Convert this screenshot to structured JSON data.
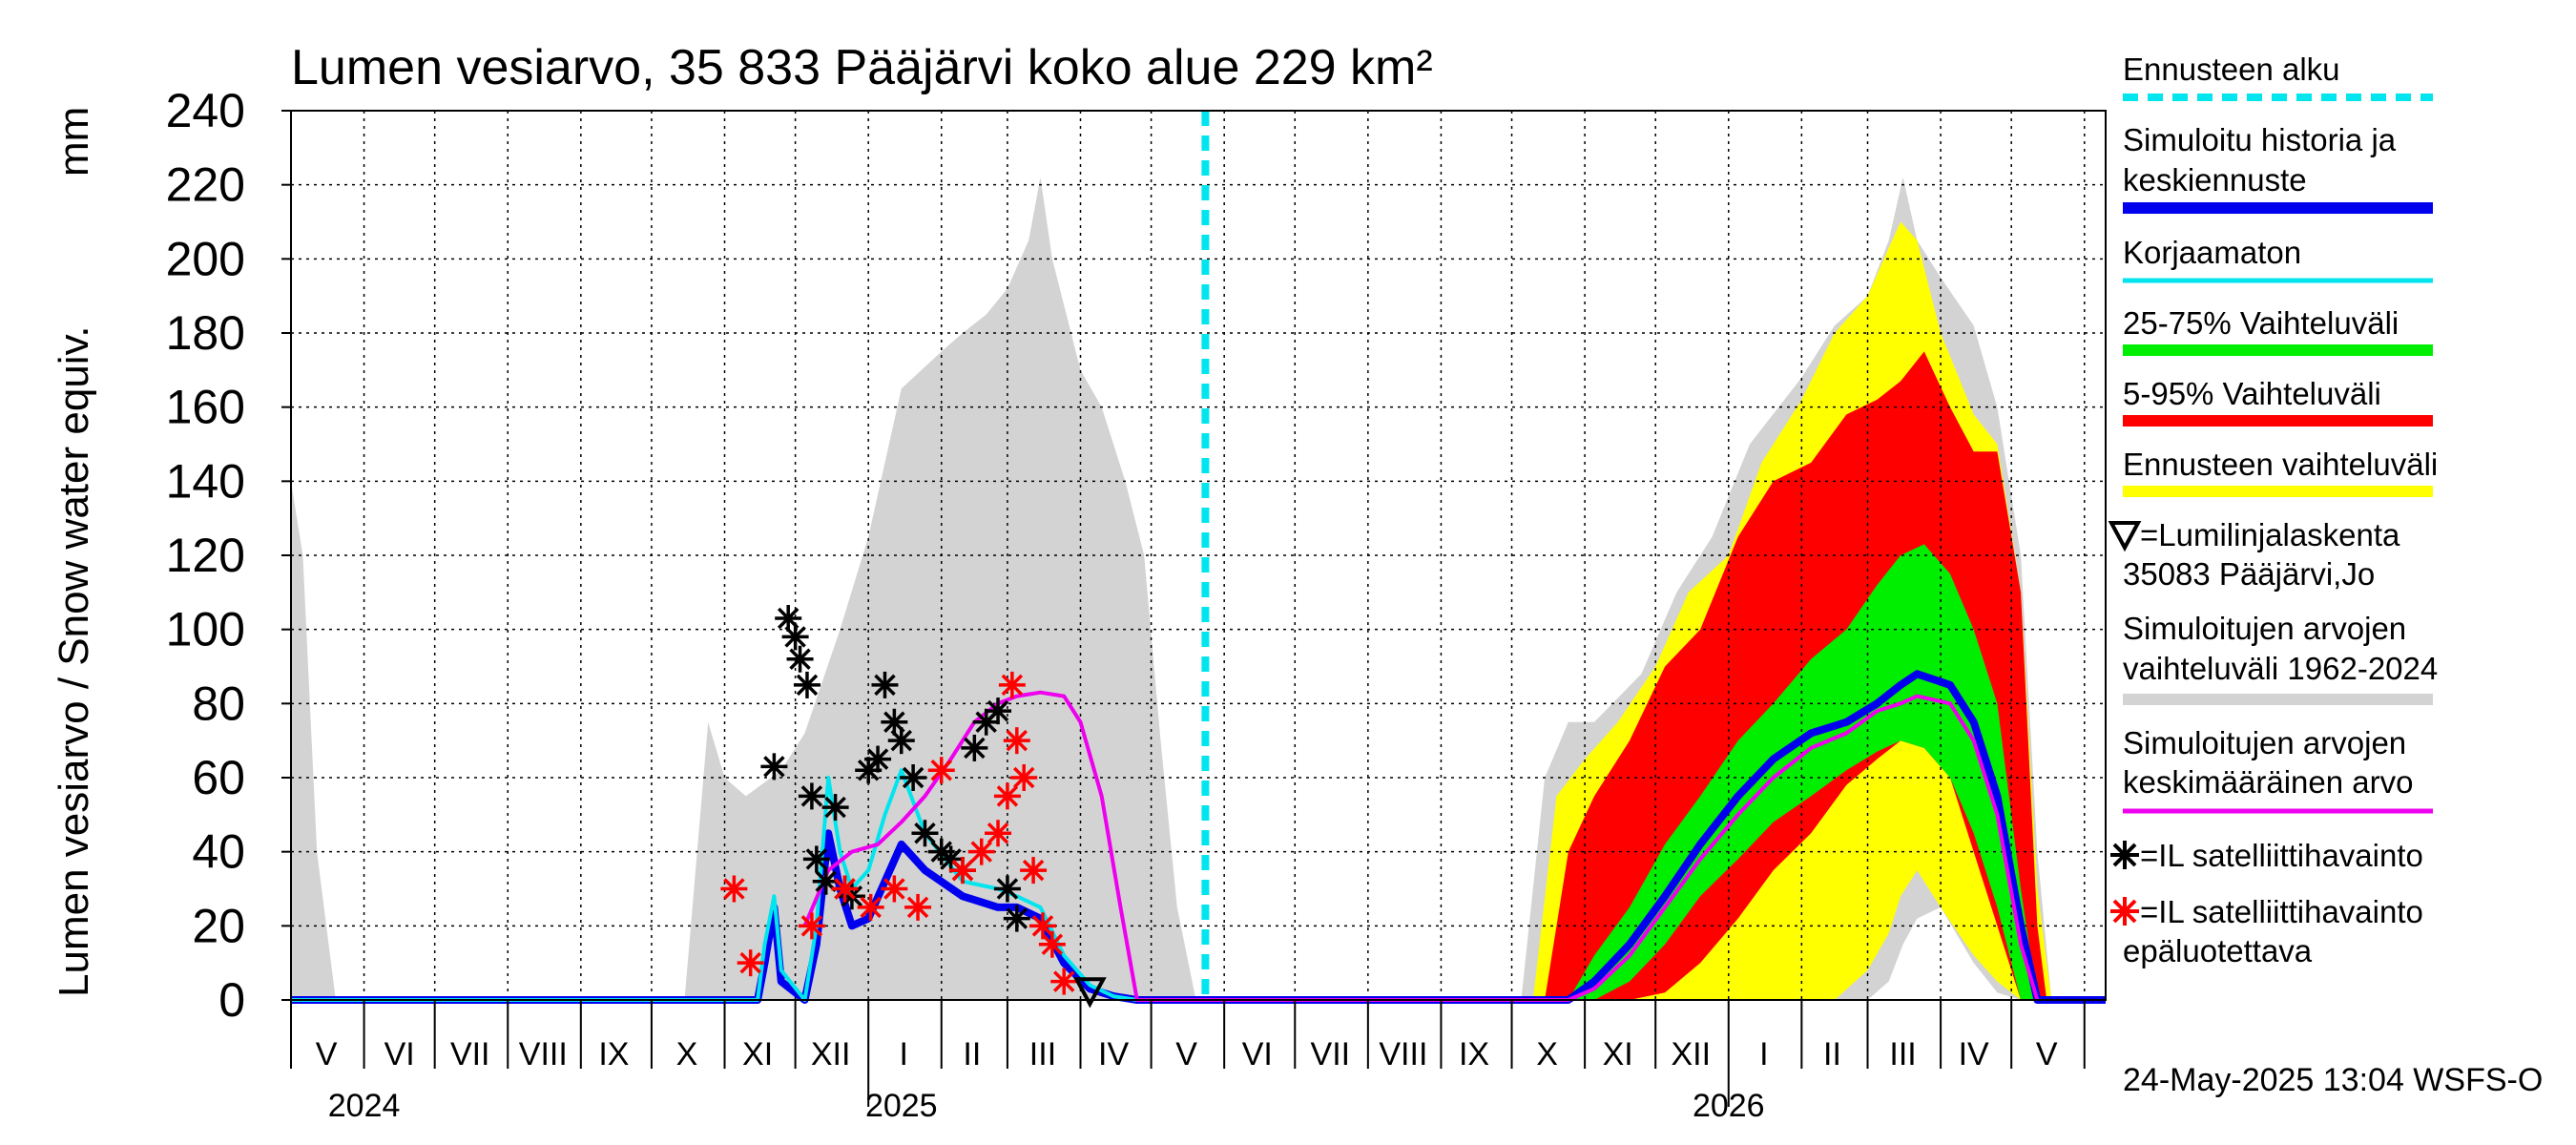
{
  "chart_data": {
    "type": "area",
    "title": "Lumen vesiarvo, 35 833 Pääjärvi koko alue 229 km²",
    "ylabel": "Lumen vesiarvo / Snow water equiv.",
    "yunit": "mm",
    "ylim": [
      0,
      240
    ],
    "yticks": [
      0,
      20,
      40,
      60,
      80,
      100,
      120,
      140,
      160,
      180,
      200,
      220,
      240
    ],
    "xlim": [
      "2024-05-01",
      "2026-06-10"
    ],
    "grid": true,
    "forecast_start": "2025-05-24",
    "month_labels": [
      {
        "label": "V",
        "date": "2024-05-16"
      },
      {
        "label": "VI",
        "date": "2024-06-16"
      },
      {
        "label": "VII",
        "date": "2024-07-16"
      },
      {
        "label": "VIII",
        "date": "2024-08-16"
      },
      {
        "label": "IX",
        "date": "2024-09-15"
      },
      {
        "label": "X",
        "date": "2024-10-16"
      },
      {
        "label": "XI",
        "date": "2024-11-15"
      },
      {
        "label": "XII",
        "date": "2024-12-16"
      },
      {
        "label": "I",
        "date": "2025-01-16"
      },
      {
        "label": "II",
        "date": "2025-02-14"
      },
      {
        "label": "III",
        "date": "2025-03-16"
      },
      {
        "label": "IV",
        "date": "2025-04-15"
      },
      {
        "label": "V",
        "date": "2025-05-16"
      },
      {
        "label": "VI",
        "date": "2025-06-15"
      },
      {
        "label": "VII",
        "date": "2025-07-16"
      },
      {
        "label": "VIII",
        "date": "2025-08-16"
      },
      {
        "label": "IX",
        "date": "2025-09-15"
      },
      {
        "label": "X",
        "date": "2025-10-16"
      },
      {
        "label": "XI",
        "date": "2025-11-15"
      },
      {
        "label": "XII",
        "date": "2025-12-16"
      },
      {
        "label": "I",
        "date": "2026-01-16"
      },
      {
        "label": "II",
        "date": "2026-02-14"
      },
      {
        "label": "III",
        "date": "2026-03-16"
      },
      {
        "label": "IV",
        "date": "2026-04-15"
      },
      {
        "label": "V",
        "date": "2026-05-16"
      }
    ],
    "year_labels": [
      {
        "label": "2024",
        "date": "2024-06-01"
      },
      {
        "label": "2025",
        "date": "2025-01-15"
      },
      {
        "label": "2026",
        "date": "2026-01-01"
      }
    ],
    "historical_range_1962_2024": {
      "x": [
        "2024-05-01",
        "2024-05-06",
        "2024-05-12",
        "2024-05-20",
        "2024-10-15",
        "2024-10-25",
        "2024-11-01",
        "2024-11-10",
        "2024-11-25",
        "2024-12-05",
        "2024-12-20",
        "2025-01-01",
        "2025-01-15",
        "2025-02-01",
        "2025-02-10",
        "2025-02-20",
        "2025-03-01",
        "2025-03-10",
        "2025-03-15",
        "2025-03-20",
        "2025-04-01",
        "2025-04-10",
        "2025-04-20",
        "2025-04-28",
        "2025-05-05",
        "2025-05-12",
        "2025-05-20"
      ],
      "upper": [
        140,
        120,
        40,
        0,
        0,
        75,
        60,
        55,
        62,
        72,
        100,
        125,
        165,
        175,
        180,
        185,
        192,
        205,
        222,
        200,
        170,
        160,
        140,
        120,
        70,
        25,
        0
      ],
      "lower": [
        0,
        0,
        0,
        0,
        0,
        0,
        0,
        0,
        0,
        0,
        0,
        0,
        0,
        0,
        0,
        0,
        0,
        0,
        0,
        0,
        0,
        0,
        0,
        0,
        0,
        0,
        0
      ]
    },
    "historical_range_forecast_year": {
      "x": [
        "2025-10-05",
        "2025-10-15",
        "2025-10-25",
        "2025-11-05",
        "2025-11-25",
        "2025-12-10",
        "2025-12-25",
        "2026-01-10",
        "2026-02-01",
        "2026-02-15",
        "2026-03-01",
        "2026-03-10",
        "2026-03-16",
        "2026-03-22",
        "2026-04-01",
        "2026-04-15",
        "2026-04-25",
        "2026-05-05",
        "2026-05-12",
        "2026-05-18"
      ],
      "upper": [
        0,
        60,
        75,
        75,
        88,
        110,
        125,
        150,
        168,
        182,
        190,
        205,
        222,
        205,
        195,
        182,
        160,
        120,
        40,
        0
      ],
      "lower": [
        0,
        0,
        0,
        0,
        0,
        0,
        0,
        0,
        0,
        0,
        0,
        5,
        15,
        22,
        25,
        10,
        2,
        0,
        0,
        0
      ]
    },
    "series": [
      {
        "name": "Ennusteen vaihteluväli",
        "color": "#ffff00",
        "x": [
          "2025-10-10",
          "2025-10-20",
          "2025-11-01",
          "2025-11-15",
          "2025-12-01",
          "2025-12-15",
          "2026-01-01",
          "2026-01-15",
          "2026-02-01",
          "2026-02-15",
          "2026-03-01",
          "2026-03-10",
          "2026-03-15",
          "2026-03-22",
          "2026-04-01",
          "2026-04-15",
          "2026-04-25",
          "2026-05-05",
          "2026-05-12",
          "2026-05-18"
        ],
        "upper": [
          0,
          55,
          65,
          75,
          90,
          110,
          120,
          145,
          162,
          180,
          190,
          203,
          210,
          205,
          180,
          158,
          150,
          110,
          30,
          0
        ],
        "lower": [
          0,
          0,
          0,
          0,
          0,
          0,
          0,
          0,
          0,
          0,
          8,
          18,
          28,
          35,
          25,
          12,
          5,
          0,
          0,
          0
        ]
      },
      {
        "name": "5-95% Vaihteluväli",
        "color": "#ff0000",
        "x": [
          "2025-10-15",
          "2025-10-25",
          "2025-11-05",
          "2025-11-20",
          "2025-12-05",
          "2025-12-20",
          "2026-01-05",
          "2026-01-20",
          "2026-02-05",
          "2026-02-20",
          "2026-03-05",
          "2026-03-15",
          "2026-03-25",
          "2026-04-05",
          "2026-04-15",
          "2026-04-25",
          "2026-05-05",
          "2026-05-12",
          "2026-05-16"
        ],
        "upper": [
          0,
          40,
          55,
          70,
          90,
          100,
          125,
          140,
          145,
          158,
          162,
          167,
          175,
          160,
          148,
          148,
          110,
          20,
          0
        ],
        "lower": [
          0,
          0,
          0,
          0,
          2,
          10,
          22,
          35,
          45,
          58,
          65,
          70,
          68,
          60,
          40,
          20,
          0,
          0,
          0
        ]
      },
      {
        "name": "25-75% Vaihteluväli",
        "color": "#00ee00",
        "x": [
          "2025-10-25",
          "2025-11-05",
          "2025-11-20",
          "2025-12-05",
          "2025-12-20",
          "2026-01-05",
          "2026-01-20",
          "2026-02-05",
          "2026-02-20",
          "2026-03-05",
          "2026-03-15",
          "2026-03-25",
          "2026-04-05",
          "2026-04-15",
          "2026-04-25",
          "2026-05-05",
          "2026-05-12"
        ],
        "upper": [
          0,
          12,
          25,
          42,
          55,
          70,
          80,
          92,
          100,
          112,
          120,
          123,
          115,
          100,
          80,
          30,
          0
        ],
        "lower": [
          0,
          0,
          5,
          15,
          28,
          38,
          48,
          55,
          62,
          67,
          70,
          68,
          60,
          45,
          25,
          0,
          0
        ]
      },
      {
        "name": "Simuloitu historia ja keskiennuste",
        "color": "#0000ee",
        "x": [
          "2024-05-01",
          "2024-11-15",
          "2024-11-18",
          "2024-11-22",
          "2024-11-25",
          "2024-12-05",
          "2024-12-10",
          "2024-12-15",
          "2024-12-20",
          "2024-12-25",
          "2025-01-01",
          "2025-01-08",
          "2025-01-15",
          "2025-01-25",
          "2025-02-10",
          "2025-02-25",
          "2025-03-05",
          "2025-03-15",
          "2025-03-25",
          "2025-04-05",
          "2025-04-15",
          "2025-04-25",
          "2025-05-24",
          "2025-10-25",
          "2025-11-05",
          "2025-11-20",
          "2025-12-05",
          "2025-12-20",
          "2026-01-05",
          "2026-01-20",
          "2026-02-05",
          "2026-02-20",
          "2026-03-05",
          "2026-03-15",
          "2026-03-22",
          "2026-04-05",
          "2026-04-15",
          "2026-04-25",
          "2026-05-05",
          "2026-05-12",
          "2026-06-10"
        ],
        "y": [
          0,
          0,
          10,
          25,
          5,
          0,
          15,
          45,
          30,
          20,
          22,
          32,
          42,
          35,
          28,
          25,
          25,
          22,
          10,
          3,
          1,
          0,
          0,
          0,
          5,
          15,
          28,
          42,
          55,
          65,
          72,
          75,
          80,
          85,
          88,
          85,
          75,
          55,
          20,
          0,
          0
        ]
      },
      {
        "name": "Korjaamaton",
        "color": "#00e5ee",
        "x": [
          "2024-05-01",
          "2024-11-15",
          "2024-11-18",
          "2024-11-22",
          "2024-11-25",
          "2024-12-05",
          "2024-12-10",
          "2024-12-15",
          "2024-12-20",
          "2024-12-25",
          "2025-01-01",
          "2025-01-08",
          "2025-01-15",
          "2025-01-25",
          "2025-02-10",
          "2025-02-25",
          "2025-03-05",
          "2025-03-15",
          "2025-03-25",
          "2025-04-05",
          "2025-04-15",
          "2025-04-25",
          "2025-05-24"
        ],
        "y": [
          0,
          0,
          15,
          28,
          8,
          0,
          20,
          60,
          40,
          30,
          35,
          50,
          62,
          45,
          32,
          30,
          28,
          25,
          12,
          4,
          1,
          0,
          0
        ]
      },
      {
        "name": "Simuloitujen arvojen keskimääräinen arvo",
        "color": "#ee00ee",
        "x": [
          "2024-12-05",
          "2024-12-15",
          "2024-12-25",
          "2025-01-05",
          "2025-01-15",
          "2025-01-25",
          "2025-02-05",
          "2025-02-15",
          "2025-02-25",
          "2025-03-05",
          "2025-03-15",
          "2025-03-25",
          "2025-04-01",
          "2025-04-10",
          "2025-04-18",
          "2025-04-25",
          "2025-10-25",
          "2025-11-05",
          "2025-11-20",
          "2025-12-05",
          "2025-12-20",
          "2026-01-05",
          "2026-01-20",
          "2026-02-05",
          "2026-02-20",
          "2026-03-05",
          "2026-03-15",
          "2026-03-22",
          "2026-04-05",
          "2026-04-15",
          "2026-04-25",
          "2026-05-05",
          "2026-05-12"
        ],
        "y": [
          20,
          35,
          40,
          42,
          48,
          55,
          65,
          75,
          80,
          82,
          83,
          82,
          75,
          55,
          25,
          0,
          0,
          3,
          12,
          25,
          38,
          50,
          60,
          68,
          72,
          78,
          80,
          82,
          80,
          70,
          50,
          15,
          0
        ]
      }
    ],
    "satellite_observations": {
      "name": "=IL satelliittihavainto",
      "color": "#000000",
      "x": [
        "2024-11-22",
        "2024-11-28",
        "2024-12-01",
        "2024-12-03",
        "2024-12-06",
        "2024-12-08",
        "2024-12-10",
        "2024-12-14",
        "2024-12-18",
        "2024-12-22",
        "2024-12-25",
        "2025-01-01",
        "2025-01-05",
        "2025-01-08",
        "2025-01-12",
        "2025-01-15",
        "2025-01-20",
        "2025-01-25",
        "2025-02-01",
        "2025-02-05",
        "2025-02-10",
        "2025-02-15",
        "2025-02-20",
        "2025-02-25",
        "2025-03-01",
        "2025-03-05"
      ],
      "y": [
        63,
        103,
        98,
        92,
        85,
        55,
        38,
        32,
        52,
        30,
        28,
        62,
        65,
        85,
        75,
        70,
        60,
        45,
        40,
        38,
        35,
        68,
        75,
        78,
        30,
        22
      ]
    },
    "satellite_unreliable": {
      "name": "=IL satelliittihavainto epäluotettava",
      "color": "#ff0000",
      "x": [
        "2024-11-05",
        "2024-11-12",
        "2024-12-08",
        "2024-12-22",
        "2025-01-02",
        "2025-01-12",
        "2025-01-22",
        "2025-02-01",
        "2025-02-10",
        "2025-02-18",
        "2025-02-25",
        "2025-03-01",
        "2025-03-03",
        "2025-03-05",
        "2025-03-08",
        "2025-03-12",
        "2025-03-16",
        "2025-03-20",
        "2025-03-25"
      ],
      "y": [
        30,
        10,
        20,
        30,
        25,
        30,
        25,
        62,
        35,
        40,
        45,
        55,
        85,
        70,
        60,
        35,
        20,
        15,
        5
      ]
    },
    "snow_course": {
      "name": "=Lumilinjalaskenta",
      "color": "#000000",
      "x": [
        "2025-04-05"
      ],
      "y": [
        2
      ]
    }
  },
  "legend": {
    "forecast_start": "Ennusteen alku",
    "sim_history": "Simuloitu historia ja",
    "sim_history_2": "keskiennuste",
    "uncorrected": "Korjaamaton",
    "range_25_75": "25-75% Vaihteluväli",
    "range_5_95": "5-95% Vaihteluväli",
    "forecast_range": "Ennusteen vaihteluväli",
    "snow_course_1": "=Lumilinjalaskenta",
    "snow_course_2": "35083 Pääjärvi,Jo",
    "hist_range_1": "Simuloitujen arvojen",
    "hist_range_2": "vaihteluväli 1962-2024",
    "mean_1": "Simuloitujen arvojen",
    "mean_2": "keskimääräinen arvo",
    "sat_obs": "=IL satelliittihavainto",
    "sat_unrel_1": "=IL satelliittihavainto",
    "sat_unrel_2": "epäluotettava"
  },
  "footer": "24-May-2025 13:04 WSFS-O",
  "colors": {
    "forecast_line": "#00e5ee",
    "history_gray": "#d3d3d3",
    "sim_blue": "#0000ee",
    "uncorrected_cyan": "#00e5ee",
    "green": "#00ee00",
    "red": "#ff0000",
    "yellow": "#ffff00",
    "magenta": "#ee00ee"
  }
}
